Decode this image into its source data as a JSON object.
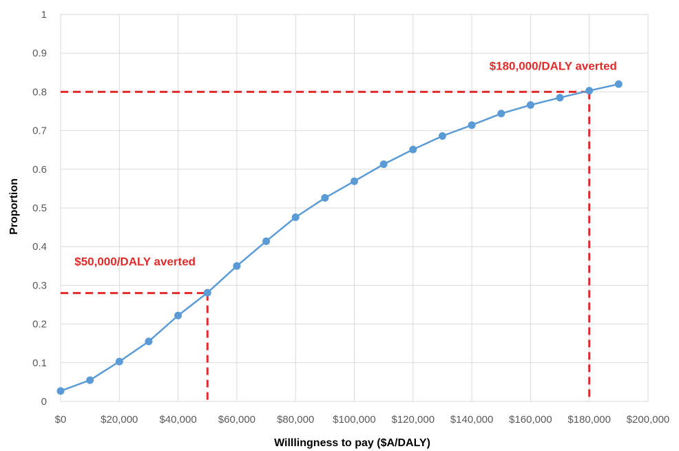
{
  "chart_data": {
    "type": "line",
    "title": "",
    "xlabel": "Willlingness to pay  ($A/DALY)",
    "ylabel": "Proportion",
    "xlim": [
      0,
      200000
    ],
    "ylim": [
      0,
      1
    ],
    "grid": true,
    "x_ticks": [
      "$0",
      "$20,000",
      "$40,000",
      "$60,000",
      "$80,000",
      "$100,000",
      "$120,000",
      "$140,000",
      "$160,000",
      "$180,000",
      "$200,000"
    ],
    "y_ticks": [
      "0",
      "0.1",
      "0.2",
      "0.3",
      "0.4",
      "0.5",
      "0.6",
      "0.7",
      "0.8",
      "0.9",
      "1"
    ],
    "series": [
      {
        "color": "#5b9bd5",
        "x": [
          0,
          10000,
          20000,
          30000,
          40000,
          50000,
          60000,
          70000,
          80000,
          90000,
          100000,
          110000,
          120000,
          130000,
          140000,
          150000,
          160000,
          170000,
          180000,
          190000
        ],
        "y": [
          0.027,
          0.055,
          0.103,
          0.155,
          0.222,
          0.281,
          0.35,
          0.414,
          0.476,
          0.526,
          0.569,
          0.613,
          0.651,
          0.686,
          0.714,
          0.744,
          0.766,
          0.785,
          0.803,
          0.82
        ]
      }
    ],
    "annotations": [
      {
        "text": "$50,000/DALY averted",
        "x": 50000,
        "y": 0.28,
        "color": "#e02b2b"
      },
      {
        "text": "$180,000/DALY averted",
        "x": 180000,
        "y": 0.8,
        "color": "#e02b2b"
      }
    ],
    "gridline_color": "#d9d9d9"
  }
}
